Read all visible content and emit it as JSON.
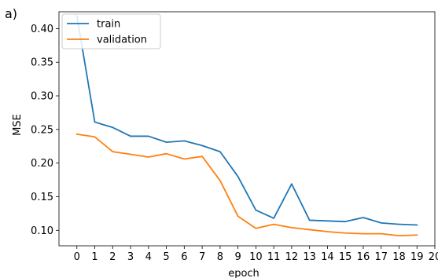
{
  "chart_data": {
    "type": "line",
    "panel_label": "a)",
    "xlabel": "epoch",
    "ylabel": "MSE",
    "xlim": [
      -1,
      20
    ],
    "ylim": [
      0.077,
      0.425
    ],
    "x_ticks": [
      0,
      1,
      2,
      3,
      4,
      5,
      6,
      7,
      8,
      9,
      10,
      11,
      12,
      13,
      14,
      15,
      16,
      17,
      18,
      19,
      20
    ],
    "y_ticks": [
      0.1,
      0.15,
      0.2,
      0.25,
      0.3,
      0.35,
      0.4
    ],
    "y_tick_labels": [
      "0.10",
      "0.15",
      "0.20",
      "0.25",
      "0.30",
      "0.35",
      "0.40"
    ],
    "grid": false,
    "legend_position": "upper-left",
    "x": [
      0,
      1,
      2,
      3,
      4,
      5,
      6,
      7,
      8,
      9,
      10,
      11,
      12,
      13,
      14,
      15,
      16,
      17,
      18,
      19
    ],
    "series": [
      {
        "name": "train",
        "color": "#1f77b4",
        "values": [
          0.419,
          0.261,
          0.253,
          0.24,
          0.24,
          0.231,
          0.233,
          0.226,
          0.217,
          0.18,
          0.13,
          0.118,
          0.169,
          0.115,
          0.114,
          0.113,
          0.119,
          0.111,
          0.109,
          0.108
        ]
      },
      {
        "name": "validation",
        "color": "#ff7f0e",
        "values": [
          0.243,
          0.239,
          0.217,
          0.213,
          0.209,
          0.214,
          0.206,
          0.21,
          0.174,
          0.121,
          0.103,
          0.109,
          0.104,
          0.101,
          0.098,
          0.096,
          0.095,
          0.095,
          0.092,
          0.093
        ]
      }
    ]
  }
}
